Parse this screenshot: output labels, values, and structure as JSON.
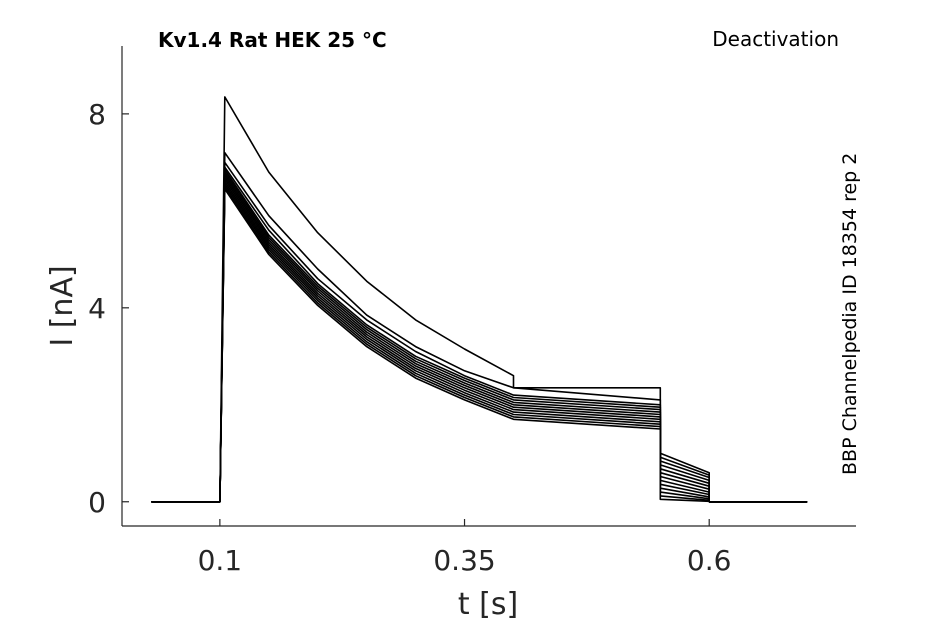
{
  "chart_data": {
    "type": "line",
    "title": "Kv1.4  Rat  HEK  25 °C",
    "protocol": "Deactivation",
    "source_note": "BBP Channelpedia ID 18354 rep 2",
    "xlabel": "t [s]",
    "ylabel": "I [nA]",
    "xlim": [
      0.0,
      0.75
    ],
    "ylim": [
      -0.5,
      9.4
    ],
    "xticks": [
      0.1,
      0.35,
      0.6
    ],
    "xtick_labels": [
      "0.1",
      "0.35",
      "0.6"
    ],
    "yticks": [
      0,
      4,
      8
    ],
    "ytick_labels": [
      "0",
      "4",
      "8"
    ],
    "grid": false,
    "color": "#000000",
    "series": [
      {
        "values": [
          [
            0.03,
            0
          ],
          [
            0.1,
            0
          ],
          [
            0.105,
            8.35
          ],
          [
            0.15,
            6.8
          ],
          [
            0.2,
            5.55
          ],
          [
            0.25,
            4.55
          ],
          [
            0.3,
            3.75
          ],
          [
            0.35,
            3.15
          ],
          [
            0.4,
            2.6
          ],
          [
            0.4,
            2.35
          ],
          [
            0.55,
            2.35
          ],
          [
            0.55,
            1.0
          ],
          [
            0.6,
            0.6
          ],
          [
            0.6,
            0
          ],
          [
            0.7,
            0
          ]
        ]
      },
      {
        "values": [
          [
            0.03,
            0
          ],
          [
            0.1,
            0
          ],
          [
            0.105,
            7.2
          ],
          [
            0.15,
            5.9
          ],
          [
            0.2,
            4.8
          ],
          [
            0.25,
            3.85
          ],
          [
            0.3,
            3.2
          ],
          [
            0.35,
            2.7
          ],
          [
            0.4,
            2.35
          ],
          [
            0.55,
            2.1
          ],
          [
            0.55,
            0.92
          ],
          [
            0.6,
            0.55
          ],
          [
            0.6,
            0
          ],
          [
            0.7,
            0
          ]
        ]
      },
      {
        "values": [
          [
            0.03,
            0
          ],
          [
            0.1,
            0
          ],
          [
            0.105,
            7.0
          ],
          [
            0.15,
            5.7
          ],
          [
            0.2,
            4.6
          ],
          [
            0.25,
            3.75
          ],
          [
            0.3,
            3.1
          ],
          [
            0.35,
            2.6
          ],
          [
            0.4,
            2.2
          ],
          [
            0.55,
            2.0
          ],
          [
            0.55,
            0.84
          ],
          [
            0.6,
            0.5
          ],
          [
            0.6,
            0
          ],
          [
            0.7,
            0
          ]
        ]
      },
      {
        "values": [
          [
            0.03,
            0
          ],
          [
            0.1,
            0
          ],
          [
            0.105,
            6.9
          ],
          [
            0.15,
            5.6
          ],
          [
            0.2,
            4.5
          ],
          [
            0.25,
            3.65
          ],
          [
            0.3,
            3.0
          ],
          [
            0.35,
            2.55
          ],
          [
            0.4,
            2.15
          ],
          [
            0.55,
            1.95
          ],
          [
            0.55,
            0.76
          ],
          [
            0.6,
            0.44
          ],
          [
            0.6,
            0
          ],
          [
            0.7,
            0
          ]
        ]
      },
      {
        "values": [
          [
            0.03,
            0
          ],
          [
            0.1,
            0
          ],
          [
            0.105,
            6.85
          ],
          [
            0.15,
            5.5
          ],
          [
            0.2,
            4.45
          ],
          [
            0.25,
            3.6
          ],
          [
            0.3,
            2.95
          ],
          [
            0.35,
            2.5
          ],
          [
            0.4,
            2.1
          ],
          [
            0.55,
            1.9
          ],
          [
            0.55,
            0.68
          ],
          [
            0.6,
            0.38
          ],
          [
            0.6,
            0
          ],
          [
            0.7,
            0
          ]
        ]
      },
      {
        "values": [
          [
            0.03,
            0
          ],
          [
            0.1,
            0
          ],
          [
            0.105,
            6.8
          ],
          [
            0.15,
            5.45
          ],
          [
            0.2,
            4.4
          ],
          [
            0.25,
            3.55
          ],
          [
            0.3,
            2.9
          ],
          [
            0.35,
            2.45
          ],
          [
            0.4,
            2.05
          ],
          [
            0.55,
            1.85
          ],
          [
            0.55,
            0.6
          ],
          [
            0.6,
            0.32
          ],
          [
            0.6,
            0
          ],
          [
            0.7,
            0
          ]
        ]
      },
      {
        "values": [
          [
            0.03,
            0
          ],
          [
            0.1,
            0
          ],
          [
            0.105,
            6.75
          ],
          [
            0.15,
            5.4
          ],
          [
            0.2,
            4.35
          ],
          [
            0.25,
            3.5
          ],
          [
            0.3,
            2.85
          ],
          [
            0.35,
            2.4
          ],
          [
            0.4,
            2.0
          ],
          [
            0.55,
            1.8
          ],
          [
            0.55,
            0.52
          ],
          [
            0.6,
            0.26
          ],
          [
            0.6,
            0
          ],
          [
            0.7,
            0
          ]
        ]
      },
      {
        "values": [
          [
            0.03,
            0
          ],
          [
            0.1,
            0
          ],
          [
            0.105,
            6.7
          ],
          [
            0.15,
            5.35
          ],
          [
            0.2,
            4.3
          ],
          [
            0.25,
            3.45
          ],
          [
            0.3,
            2.8
          ],
          [
            0.35,
            2.35
          ],
          [
            0.4,
            1.95
          ],
          [
            0.55,
            1.75
          ],
          [
            0.55,
            0.44
          ],
          [
            0.6,
            0.2
          ],
          [
            0.6,
            0
          ],
          [
            0.7,
            0
          ]
        ]
      },
      {
        "values": [
          [
            0.03,
            0
          ],
          [
            0.1,
            0
          ],
          [
            0.105,
            6.65
          ],
          [
            0.15,
            5.3
          ],
          [
            0.2,
            4.25
          ],
          [
            0.25,
            3.4
          ],
          [
            0.3,
            2.75
          ],
          [
            0.35,
            2.3
          ],
          [
            0.4,
            1.9
          ],
          [
            0.55,
            1.7
          ],
          [
            0.55,
            0.36
          ],
          [
            0.6,
            0.15
          ],
          [
            0.6,
            0
          ],
          [
            0.7,
            0
          ]
        ]
      },
      {
        "values": [
          [
            0.03,
            0
          ],
          [
            0.1,
            0
          ],
          [
            0.105,
            6.6
          ],
          [
            0.15,
            5.25
          ],
          [
            0.2,
            4.2
          ],
          [
            0.25,
            3.35
          ],
          [
            0.3,
            2.7
          ],
          [
            0.35,
            2.25
          ],
          [
            0.4,
            1.85
          ],
          [
            0.55,
            1.65
          ],
          [
            0.55,
            0.28
          ],
          [
            0.6,
            0.1
          ],
          [
            0.6,
            0
          ],
          [
            0.7,
            0
          ]
        ]
      },
      {
        "values": [
          [
            0.03,
            0
          ],
          [
            0.1,
            0
          ],
          [
            0.105,
            6.55
          ],
          [
            0.15,
            5.2
          ],
          [
            0.2,
            4.15
          ],
          [
            0.25,
            3.3
          ],
          [
            0.3,
            2.65
          ],
          [
            0.35,
            2.2
          ],
          [
            0.4,
            1.8
          ],
          [
            0.55,
            1.6
          ],
          [
            0.55,
            0.2
          ],
          [
            0.6,
            0.06
          ],
          [
            0.6,
            0
          ],
          [
            0.7,
            0
          ]
        ]
      },
      {
        "values": [
          [
            0.03,
            0
          ],
          [
            0.1,
            0
          ],
          [
            0.105,
            6.5
          ],
          [
            0.15,
            5.15
          ],
          [
            0.2,
            4.1
          ],
          [
            0.25,
            3.25
          ],
          [
            0.3,
            2.6
          ],
          [
            0.35,
            2.15
          ],
          [
            0.4,
            1.75
          ],
          [
            0.55,
            1.55
          ],
          [
            0.55,
            0.12
          ],
          [
            0.6,
            0.03
          ],
          [
            0.6,
            0
          ],
          [
            0.7,
            0
          ]
        ]
      },
      {
        "values": [
          [
            0.03,
            0
          ],
          [
            0.1,
            0
          ],
          [
            0.105,
            6.45
          ],
          [
            0.15,
            5.1
          ],
          [
            0.2,
            4.05
          ],
          [
            0.25,
            3.2
          ],
          [
            0.3,
            2.55
          ],
          [
            0.35,
            2.1
          ],
          [
            0.4,
            1.7
          ],
          [
            0.55,
            1.5
          ],
          [
            0.55,
            0.05
          ],
          [
            0.6,
            0.01
          ],
          [
            0.6,
            0
          ],
          [
            0.7,
            0
          ]
        ]
      }
    ]
  }
}
